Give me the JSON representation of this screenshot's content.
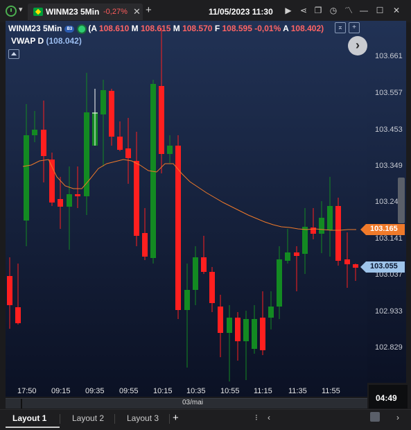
{
  "titlebar": {
    "tab_title": "WINM23 5Min",
    "tab_change": "-0,27%",
    "add_label": "+",
    "datetime": "11/05/2023 11:30",
    "icons": [
      "replay-icon",
      "share-icon",
      "restore-icon",
      "history-icon",
      "trend-icon",
      "minimize-icon",
      "maximize-icon",
      "close-icon"
    ]
  },
  "info": {
    "symbol": "WINM23 5Min",
    "exchange_badge": "B3",
    "open_paren": "(",
    "a_label": "A",
    "a_value": "108.610",
    "m1_label": "M",
    "m1_value": "108.615",
    "m2_label": "M",
    "m2_value": "108.570",
    "f_label": "F",
    "f_value": "108.595",
    "change": "-0,01%",
    "a2_label": "A",
    "a2_value": "108.402)"
  },
  "vwap": {
    "label": "VWAP D",
    "value": "(108.042)"
  },
  "chart_data": {
    "type": "candlestick",
    "y_axis_labels": [
      "103.661",
      "103.557",
      "103.453",
      "103.349",
      "103.24",
      "103.141",
      "103.037",
      "102.933",
      "102.829"
    ],
    "x_axis_labels": [
      "17:50",
      "09:15",
      "09:35",
      "09:55",
      "10:15",
      "10:35",
      "10:55",
      "11:15",
      "11:35",
      "11:55"
    ],
    "date_label": "03/mai",
    "price_tags": {
      "vwap": "103.165",
      "last": "103.055"
    },
    "colors": {
      "up": "#138a22",
      "down": "#ff1f1f",
      "vwap": "#f07a2a",
      "cursor": "#ffffff"
    }
  },
  "status": {
    "clock": "04:49"
  },
  "layouts": {
    "tabs": [
      "Layout 1",
      "Layout 2",
      "Layout 3"
    ],
    "add": "+"
  }
}
